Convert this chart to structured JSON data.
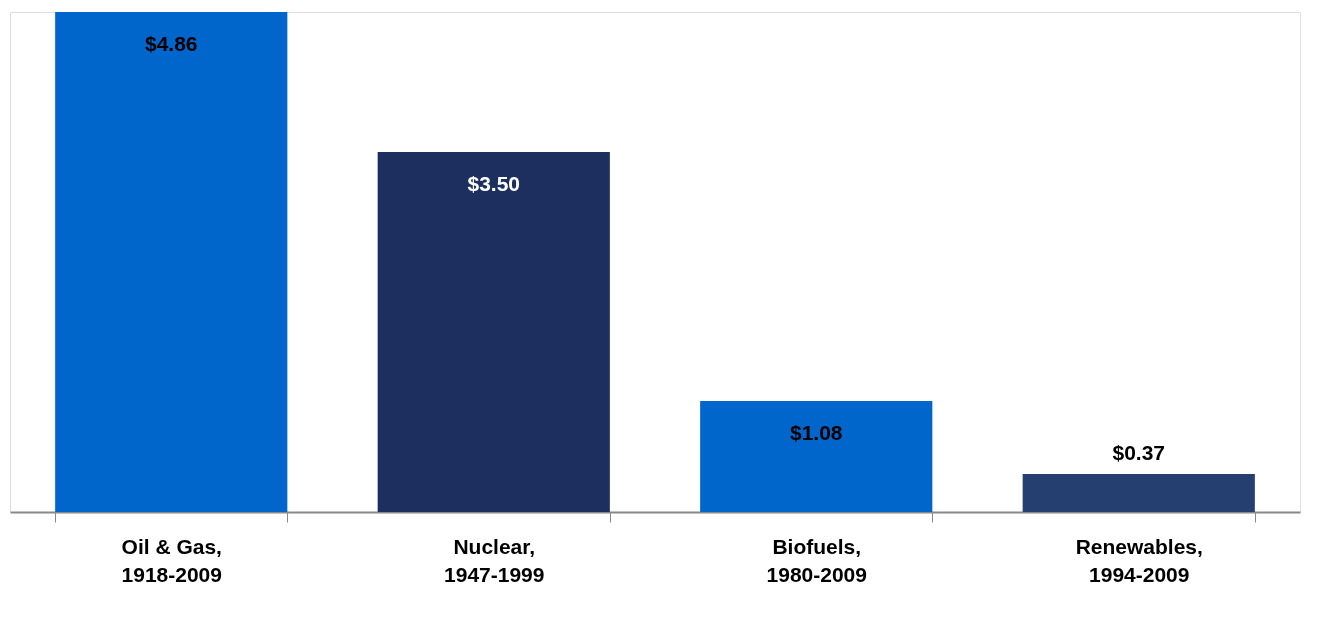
{
  "chart_data": {
    "type": "bar",
    "categories": [
      "Oil & Gas,\n1918-2009",
      "Nuclear,\n1947-1999",
      "Biofuels,\n1980-2009",
      "Renewables,\n1994-2009"
    ],
    "values": [
      4.86,
      3.5,
      1.08,
      0.37
    ],
    "value_labels": [
      "$4.86",
      "$3.50",
      "$1.08",
      "$0.37"
    ],
    "colors": [
      "#0066cc",
      "#1c2f5e",
      "#0066cc",
      "#253f70"
    ],
    "grid": false
  }
}
